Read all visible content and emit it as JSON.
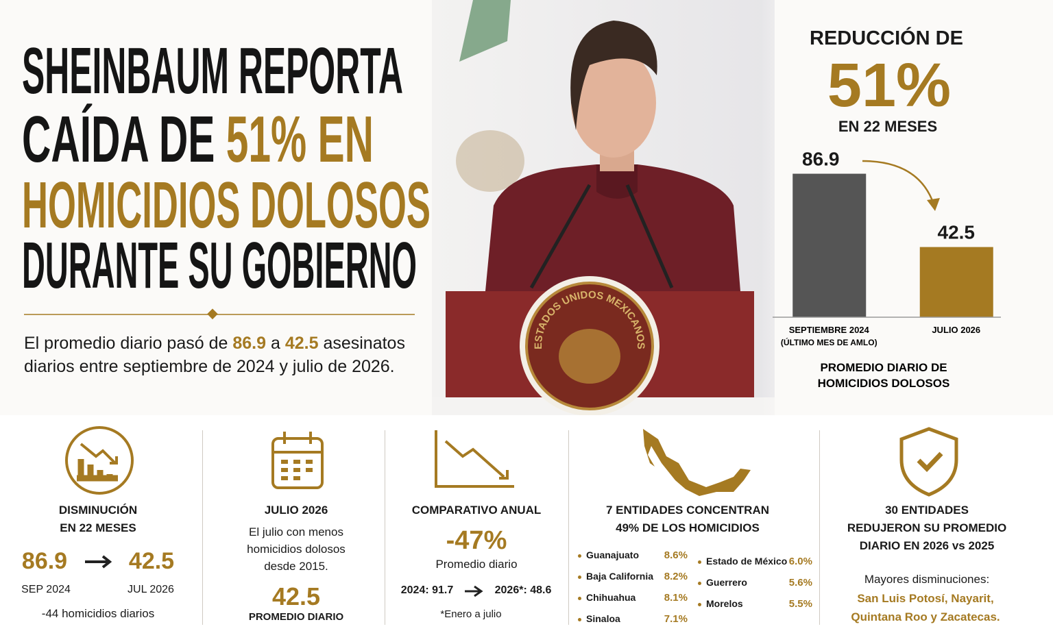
{
  "headline": {
    "line1": "SHEINBAUM REPORTA",
    "line2_a": "CAÍDA DE ",
    "line2_b": "51% EN",
    "line3": "HOMICIDIOS DOLOSOS",
    "line4": "DURANTE SU GOBIERNO"
  },
  "summary": {
    "parts": [
      "El promedio diario pasó de ",
      "86.9",
      " a ",
      "42.5",
      " asesinatos",
      "diarios entre septiembre de 2024 y julio de 2026."
    ]
  },
  "photo": {
    "seal_text": "ESTADOS UNIDOS MEXICANOS"
  },
  "side_panel": {
    "kicker": "REDUCCIÓN DE",
    "big": "51%",
    "period": "EN 22 MESES"
  },
  "chart_data": {
    "type": "bar",
    "categories": [
      "SEPTIEMBRE 2024",
      "JULIO 2026"
    ],
    "category_notes": [
      "(ÚLTIMO MES DE AMLO)",
      null
    ],
    "values": [
      86.9,
      42.5
    ],
    "colors": [
      "#555555",
      "#a57a22"
    ],
    "ylim": [
      0,
      100
    ],
    "xlabel": [
      "PROMEDIO DIARIO DE",
      "HOMICIDIOS DOLOSOS"
    ]
  },
  "cards": [
    {
      "title": [
        "DISMINUCIÓN",
        "EN 22 MESES"
      ],
      "from": "86.9",
      "to": "42.5",
      "from_label": "SEP 2024",
      "to_label": "JUL 2026",
      "note": "-44 homicidios diarios"
    },
    {
      "title": [
        "JULIO 2026"
      ],
      "text": [
        "El julio con menos",
        "homicidios dolosos",
        "desde 2015."
      ],
      "big": "42.5",
      "big_label": "PROMEDIO DIARIO"
    },
    {
      "title": [
        "COMPARATIVO ANUAL"
      ],
      "big": "-47%",
      "big_label": "Promedio diario",
      "from": "2024: 91.7",
      "to": "2026*: 48.6",
      "note": "*Enero a julio"
    },
    {
      "title": [
        "7 ENTIDADES CONCENTRAN",
        "49% DE LOS HOMICIDIOS"
      ],
      "states": [
        [
          "Guanajuato",
          "8.6%"
        ],
        [
          "Baja California",
          "8.2%"
        ],
        [
          "Chihuahua",
          "8.1%"
        ],
        [
          "Sinaloa",
          "7.1%"
        ],
        [
          "Estado de México",
          "6.0%"
        ],
        [
          "Guerrero",
          "5.6%"
        ],
        [
          "Morelos",
          "5.5%"
        ]
      ]
    },
    {
      "title": [
        "30 ENTIDADES",
        "REDUJERON SU PROMEDIO",
        "DIARIO EN 2026 vs 2025"
      ],
      "text": [
        "Mayores disminuciones:"
      ],
      "highlight": [
        "San Luis Potosí, Nayarit,",
        "Quintana Roo y Zacatecas."
      ]
    }
  ]
}
